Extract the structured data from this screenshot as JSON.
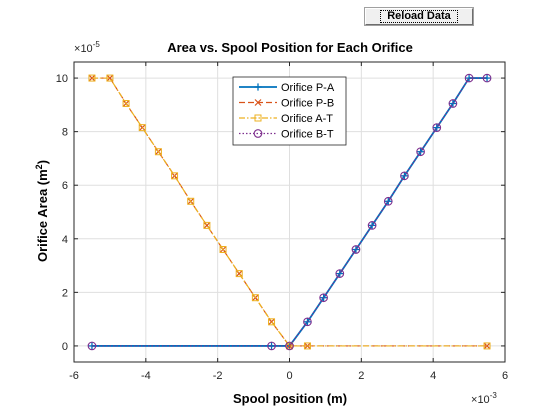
{
  "toolbar": {
    "reload_label": "Reload Data"
  },
  "colors": {
    "p_a": "#0072bd",
    "p_b": "#d95319",
    "a_t": "#edb120",
    "b_t": "#7e2f8e",
    "axis": "#262626",
    "grid": "#dfdfdf"
  },
  "chart_data": {
    "type": "line",
    "title": "Area vs. Spool Position for Each Orifice",
    "xlabel": "Spool position (m)",
    "ylabel": "Orifice Area (m",
    "ylabel_sup": "2",
    "ylabel_end": ")",
    "x_multiplier": "10",
    "x_multiplier_exp": "-3",
    "y_multiplier": "10",
    "y_multiplier_exp": "-5",
    "xlim": [
      -6,
      6
    ],
    "ylim": [
      -0.6,
      10.6
    ],
    "xticks": [
      -6,
      -4,
      -2,
      0,
      2,
      4,
      6
    ],
    "yticks": [
      0,
      2,
      4,
      6,
      8,
      10
    ],
    "grid": true,
    "legend_position": "top-center",
    "series": [
      {
        "name": "Orifice P-A",
        "color": "#0072bd",
        "line": "solid",
        "marker": "plus",
        "x": [
          -5.5,
          -0.5,
          0,
          0.5,
          0.95,
          1.4,
          1.85,
          2.3,
          2.75,
          3.2,
          3.65,
          4.1,
          4.55,
          5.0,
          5.5
        ],
        "y": [
          0,
          0,
          0,
          0.9,
          1.8,
          2.7,
          3.6,
          4.5,
          5.4,
          6.35,
          7.25,
          8.15,
          9.05,
          10.0,
          10.0
        ]
      },
      {
        "name": "Orifice P-B",
        "color": "#d95319",
        "line": "dashed",
        "marker": "x",
        "x": [
          -5.5,
          -5.0,
          -4.55,
          -4.1,
          -3.65,
          -3.2,
          -2.75,
          -2.3,
          -1.85,
          -1.4,
          -0.95,
          -0.5,
          0,
          0.5,
          5.5
        ],
        "y": [
          10.0,
          10.0,
          9.05,
          8.15,
          7.25,
          6.35,
          5.4,
          4.5,
          3.6,
          2.7,
          1.8,
          0.9,
          0,
          0,
          0
        ]
      },
      {
        "name": "Orifice A-T",
        "color": "#edb120",
        "line": "dashdot",
        "marker": "square",
        "x": [
          -5.5,
          -5.0,
          -4.55,
          -4.1,
          -3.65,
          -3.2,
          -2.75,
          -2.3,
          -1.85,
          -1.4,
          -0.95,
          -0.5,
          0,
          0.5,
          5.5
        ],
        "y": [
          10.0,
          10.0,
          9.05,
          8.15,
          7.25,
          6.35,
          5.4,
          4.5,
          3.6,
          2.7,
          1.8,
          0.9,
          0,
          0,
          0
        ]
      },
      {
        "name": "Orifice B-T",
        "color": "#7e2f8e",
        "line": "dotted",
        "marker": "circle",
        "x": [
          -5.5,
          -0.5,
          0,
          0.5,
          0.95,
          1.4,
          1.85,
          2.3,
          2.75,
          3.2,
          3.65,
          4.1,
          4.55,
          5.0,
          5.5
        ],
        "y": [
          0,
          0,
          0,
          0.9,
          1.8,
          2.7,
          3.6,
          4.5,
          5.4,
          6.35,
          7.25,
          8.15,
          9.05,
          10.0,
          10.0
        ]
      }
    ]
  }
}
